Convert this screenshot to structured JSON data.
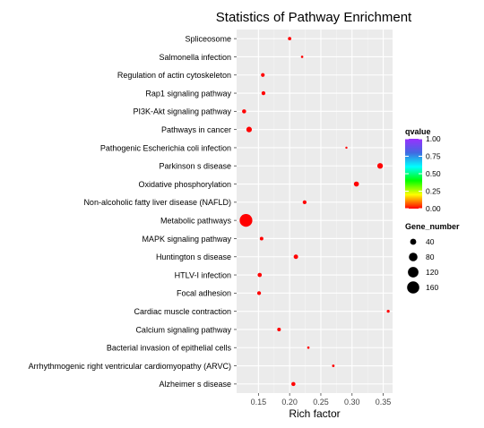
{
  "chart_data": {
    "type": "scatter",
    "title": "Statistics of Pathway Enrichment",
    "xlabel": "Rich factor",
    "ylabel": "",
    "xlim": [
      0.115,
      0.365
    ],
    "xticks": [
      0.15,
      0.2,
      0.25,
      0.3,
      0.35
    ],
    "xtick_labels": [
      "0.15",
      "0.20",
      "0.25",
      "0.30",
      "0.35"
    ],
    "grid": true,
    "legend_position": "right",
    "categories": [
      "Spliceosome",
      "Salmonella infection",
      "Regulation of actin cytoskeleton",
      "Rap1 signaling pathway",
      "PI3K-Akt signaling pathway",
      "Pathways in cancer",
      "Pathogenic Escherichia coli infection",
      "Parkinson s disease",
      "Oxidative phosphorylation",
      "Non-alcoholic fatty liver disease (NAFLD)",
      "Metabolic pathways",
      "MAPK signaling pathway",
      "Huntington s disease",
      "HTLV-I infection",
      "Focal adhesion",
      "Cardiac muscle contraction",
      "Calcium signaling pathway",
      "Bacterial invasion of epithelial cells",
      "Arrhythmogenic right ventricular cardiomyopathy (ARVC)",
      "Alzheimer s disease"
    ],
    "rich_factor": [
      0.2,
      0.22,
      0.157,
      0.158,
      0.127,
      0.135,
      0.291,
      0.345,
      0.307,
      0.224,
      0.13,
      0.155,
      0.21,
      0.152,
      0.151,
      0.358,
      0.183,
      0.23,
      0.27,
      0.206
    ],
    "gene_number": [
      12,
      6,
      15,
      16,
      18,
      33,
      5,
      34,
      28,
      16,
      175,
      14,
      21,
      19,
      16,
      9,
      14,
      6,
      7,
      18
    ],
    "qvalue": [
      0,
      0,
      0,
      0,
      0,
      0,
      0,
      0,
      0,
      0,
      0,
      0,
      0,
      0,
      0,
      0,
      0,
      0,
      0,
      0
    ],
    "colorbar": {
      "title": "qvalue",
      "ticks": [
        "1.00",
        "0.75",
        "0.50",
        "0.25",
        "0.00"
      ],
      "colors": [
        "#9b30ff",
        "#4169e1",
        "#00ffff",
        "#00ff00",
        "#ffff00",
        "#ff0000"
      ]
    },
    "size_legend": {
      "title": "Gene_number",
      "labels": [
        "40",
        "80",
        "120",
        "160"
      ],
      "values": [
        40,
        80,
        120,
        160
      ]
    },
    "point_color": "#ff0000",
    "panel_color": "#ebebeb"
  }
}
